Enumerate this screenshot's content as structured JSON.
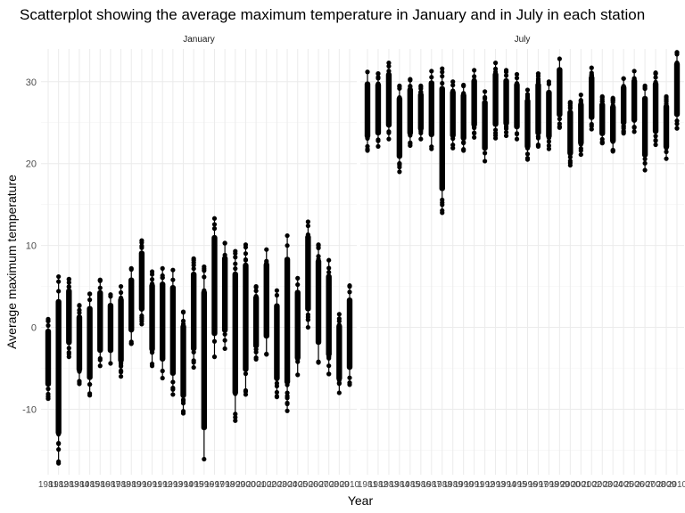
{
  "chart_data": {
    "type": "scatter",
    "title": "Scatterplot showing the average maximum temperature in January and in July in each station",
    "xlabel": "Year",
    "ylabel": "Average maximum temperature",
    "ylim": [
      -18,
      34
    ],
    "yticks": [
      -10,
      0,
      10,
      20,
      30
    ],
    "grid": true,
    "legend": "none",
    "x_tick_labels": [
      "1981",
      "1982",
      "1983",
      "1984",
      "1985",
      "1986",
      "1987",
      "1988",
      "1989",
      "1990",
      "1991",
      "1992",
      "1993",
      "1994",
      "1995",
      "1996",
      "1997",
      "1998",
      "1999",
      "2000",
      "2001",
      "2002",
      "2003",
      "2004",
      "2005",
      "2006",
      "2007",
      "2008",
      "2009",
      "2010"
    ],
    "facets": [
      {
        "name": "January",
        "series": [
          {
            "year": "1981",
            "min": -8.7,
            "max": 1.0
          },
          {
            "year": "1982",
            "min": -16.6,
            "max": 6.2
          },
          {
            "year": "1983",
            "min": -3.6,
            "max": 5.9
          },
          {
            "year": "1984",
            "min": -6.9,
            "max": 2.7
          },
          {
            "year": "1985",
            "min": -8.3,
            "max": 4.1
          },
          {
            "year": "1986",
            "min": -4.7,
            "max": 5.8
          },
          {
            "year": "1987",
            "min": -4.4,
            "max": 4.0
          },
          {
            "year": "1988",
            "min": -6.0,
            "max": 5.0
          },
          {
            "year": "1989",
            "min": -2.0,
            "max": 7.2
          },
          {
            "year": "1990",
            "min": 0.4,
            "max": 10.6
          },
          {
            "year": "1991",
            "min": -4.7,
            "max": 6.8
          },
          {
            "year": "1992",
            "min": -6.2,
            "max": 7.2
          },
          {
            "year": "1993",
            "min": -8.2,
            "max": 7.0
          },
          {
            "year": "1994",
            "min": -10.5,
            "max": 1.9
          },
          {
            "year": "1995",
            "min": -4.9,
            "max": 8.4
          },
          {
            "year": "1996",
            "min": -16.1,
            "max": 7.4
          },
          {
            "year": "1997",
            "min": -3.6,
            "max": 13.3
          },
          {
            "year": "1998",
            "min": -2.6,
            "max": 10.3
          },
          {
            "year": "1999",
            "min": -11.4,
            "max": 9.3
          },
          {
            "year": "2000",
            "min": -8.2,
            "max": 10.1
          },
          {
            "year": "2001",
            "min": -3.9,
            "max": 5.0
          },
          {
            "year": "2002",
            "min": -3.3,
            "max": 9.5
          },
          {
            "year": "2003",
            "min": -8.5,
            "max": 4.5
          },
          {
            "year": "2004",
            "min": -10.2,
            "max": 11.2
          },
          {
            "year": "2005",
            "min": -5.8,
            "max": 6.0
          },
          {
            "year": "2006",
            "min": 0.0,
            "max": 12.9
          },
          {
            "year": "2007",
            "min": -4.3,
            "max": 10.1
          },
          {
            "year": "2008",
            "min": -5.7,
            "max": 8.2
          },
          {
            "year": "2009",
            "min": -8.0,
            "max": 1.6
          },
          {
            "year": "2010",
            "min": -7.0,
            "max": 5.1
          }
        ]
      },
      {
        "name": "July",
        "series": [
          {
            "year": "1981",
            "min": 21.6,
            "max": 31.2
          },
          {
            "year": "1982",
            "min": 22.1,
            "max": 31.0
          },
          {
            "year": "1983",
            "min": 23.0,
            "max": 32.3
          },
          {
            "year": "1984",
            "min": 19.0,
            "max": 29.5
          },
          {
            "year": "1985",
            "min": 22.2,
            "max": 30.3
          },
          {
            "year": "1986",
            "min": 23.0,
            "max": 29.5
          },
          {
            "year": "1987",
            "min": 21.8,
            "max": 31.3
          },
          {
            "year": "1988",
            "min": 14.0,
            "max": 31.6
          },
          {
            "year": "1989",
            "min": 21.9,
            "max": 30.0
          },
          {
            "year": "1990",
            "min": 21.6,
            "max": 29.6
          },
          {
            "year": "1991",
            "min": 23.2,
            "max": 31.4
          },
          {
            "year": "1992",
            "min": 20.3,
            "max": 28.8
          },
          {
            "year": "1993",
            "min": 23.1,
            "max": 32.3
          },
          {
            "year": "1994",
            "min": 23.4,
            "max": 31.4
          },
          {
            "year": "1995",
            "min": 23.0,
            "max": 30.9
          },
          {
            "year": "1996",
            "min": 20.5,
            "max": 29.0
          },
          {
            "year": "1997",
            "min": 22.1,
            "max": 31.0
          },
          {
            "year": "1998",
            "min": 21.8,
            "max": 30.0
          },
          {
            "year": "1999",
            "min": 24.4,
            "max": 32.8
          },
          {
            "year": "2000",
            "min": 19.8,
            "max": 27.5
          },
          {
            "year": "2001",
            "min": 21.1,
            "max": 28.4
          },
          {
            "year": "2002",
            "min": 24.2,
            "max": 31.7
          },
          {
            "year": "2003",
            "min": 22.5,
            "max": 28.2
          },
          {
            "year": "2004",
            "min": 21.5,
            "max": 28.0
          },
          {
            "year": "2005",
            "min": 23.7,
            "max": 30.4
          },
          {
            "year": "2006",
            "min": 23.9,
            "max": 31.3
          },
          {
            "year": "2007",
            "min": 19.2,
            "max": 29.5
          },
          {
            "year": "2008",
            "min": 22.3,
            "max": 31.1
          },
          {
            "year": "2009",
            "min": 20.6,
            "max": 28.2
          },
          {
            "year": "2010",
            "min": 24.3,
            "max": 33.6
          }
        ]
      }
    ]
  }
}
